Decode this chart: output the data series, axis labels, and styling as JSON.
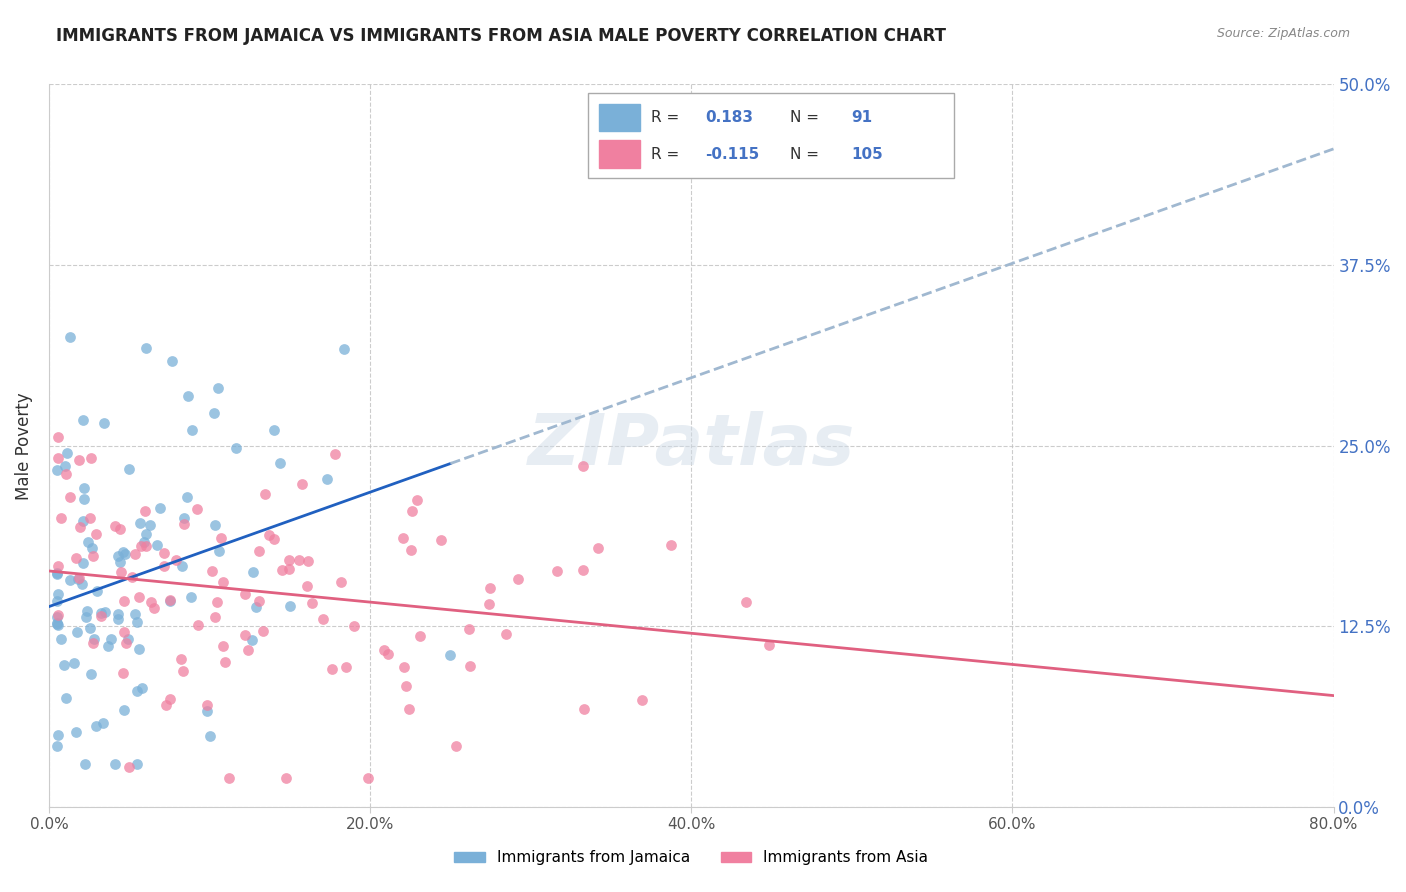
{
  "title": "IMMIGRANTS FROM JAMAICA VS IMMIGRANTS FROM ASIA MALE POVERTY CORRELATION CHART",
  "source": "Source: ZipAtlas.com",
  "ylabel": "Male Poverty",
  "ytick_values": [
    0.0,
    0.125,
    0.25,
    0.375,
    0.5
  ],
  "xtick_values": [
    0.0,
    0.2,
    0.4,
    0.6,
    0.8
  ],
  "xlim": [
    0.0,
    0.8
  ],
  "ylim": [
    0.0,
    0.5
  ],
  "watermark": "ZIPatlas",
  "jamaica_color": "#7ab0d8",
  "asia_color": "#f080a0",
  "jamaica_line_color": "#2060c0",
  "asia_line_color": "#e06080",
  "trendline_dashed_color": "#a0b8d0",
  "jamaica_R": 0.183,
  "jamaica_N": 91,
  "asia_R": -0.115,
  "asia_N": 105
}
